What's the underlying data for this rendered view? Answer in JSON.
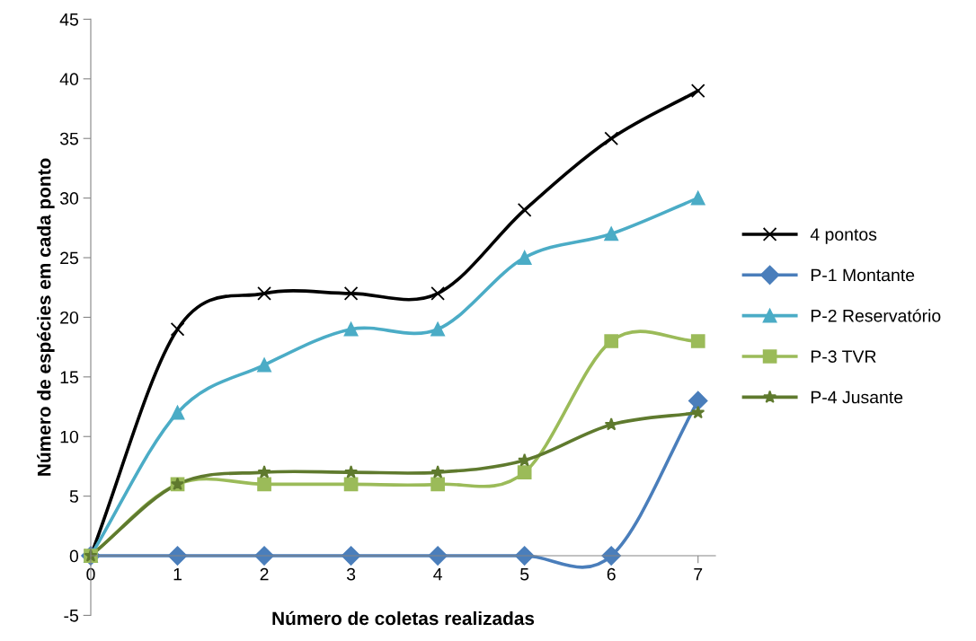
{
  "chart_data": {
    "type": "line",
    "xlabel": "Número de coletas realizadas",
    "ylabel": "Número de espécies em cada ponto",
    "x": [
      0,
      1,
      2,
      3,
      4,
      5,
      6,
      7
    ],
    "series": [
      {
        "name": "4 pontos",
        "color": "#000000",
        "marker": "cross",
        "values": [
          0,
          19,
          22,
          22,
          22,
          29,
          35,
          39
        ]
      },
      {
        "name": "P-1 Montante",
        "color": "#4a7ebb",
        "marker": "diamond",
        "values": [
          0,
          0,
          0,
          0,
          0,
          0,
          0,
          13
        ]
      },
      {
        "name": "P-2 Reservatório",
        "color": "#4bacc6",
        "marker": "triangle",
        "values": [
          0,
          12,
          16,
          19,
          19,
          25,
          27,
          30
        ]
      },
      {
        "name": "P-3 TVR",
        "color": "#9bbb59",
        "marker": "square",
        "values": [
          0,
          6,
          6,
          6,
          6,
          7,
          18,
          18
        ]
      },
      {
        "name": "P-4 Jusante",
        "color": "#5f7a2e",
        "marker": "star",
        "values": [
          0,
          6,
          7,
          7,
          7,
          8,
          11,
          12
        ]
      }
    ],
    "xlim": [
      0,
      7.2
    ],
    "xticks": [
      0,
      1,
      2,
      3,
      4,
      5,
      6,
      7
    ],
    "ylim": [
      -5,
      45
    ],
    "yticks": [
      -5,
      0,
      5,
      10,
      15,
      20,
      25,
      30,
      35,
      40,
      45
    ],
    "line_style": "solid",
    "legend": "right",
    "grid": false
  }
}
